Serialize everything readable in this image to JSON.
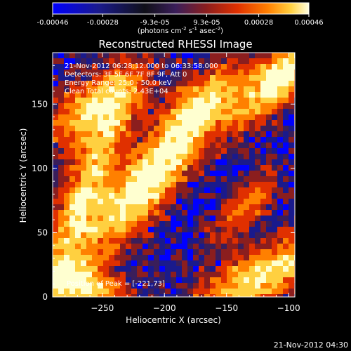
{
  "colorbar": {
    "ticks": [
      "-0.00046",
      "-0.00028",
      "-9.3e-05",
      "9.3e-05",
      "0.00028",
      "0.00046"
    ],
    "tick_values": [
      -0.00046,
      -0.00028,
      -9.3e-05,
      9.3e-05,
      0.00028,
      0.00046
    ],
    "units_prefix": "(photons cm",
    "units_sup1": "-2",
    "units_mid": " s",
    "units_sup2": "-1",
    "units_mid2": " asec",
    "units_sup3": "-2",
    "units_suffix": ")",
    "colormap": [
      "#0000ff",
      "#1a1a8c",
      "#000000",
      "#3a1e5a",
      "#8b1e1e",
      "#e03000",
      "#ff8000",
      "#ffd040",
      "#ffffd0"
    ]
  },
  "chart_data": {
    "type": "heatmap",
    "title": "Reconstructed RHESSI Image",
    "xlabel": "Heliocentric X (arcsec)",
    "ylabel": "Heliocentric Y (arcsec)",
    "xlim": [
      -290,
      -95
    ],
    "ylim": [
      0,
      190
    ],
    "xticks": [
      -250,
      -200,
      -150,
      -100
    ],
    "yticks": [
      0,
      50,
      100,
      150
    ],
    "xtick_labels": [
      "−250",
      "−200",
      "−150",
      "−100"
    ],
    "ytick_labels": [
      "0",
      "50",
      "100",
      "150"
    ],
    "peak": [
      -221,
      73
    ]
  },
  "annotations": {
    "line1": "21-Nov-2012 06:28:12.000 to 06:33:58.000",
    "line2": "Detectors: 3F 5F 6F 7F 8F 9F, Att 0",
    "line3": "Energy Range: 25.0 - 50.0 keV",
    "line4": "Clean     Total counts: 2.43E+04",
    "peak_text": "Position of Peak = [-221,73]"
  },
  "timestamp": "21-Nov-2012 04:30"
}
